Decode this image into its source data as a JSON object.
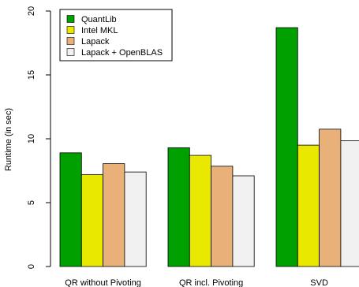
{
  "chart_data": {
    "type": "bar",
    "title": "",
    "xlabel": "",
    "ylabel": "Runtime (in sec)",
    "ylim": [
      0,
      20
    ],
    "yticks": [
      0,
      5,
      10,
      15,
      20
    ],
    "grid": false,
    "legend_position": "top-left",
    "categories": [
      "QR without Pivoting",
      "QR incl. Pivoting",
      "SVD"
    ],
    "series": [
      {
        "name": "QuantLib",
        "color": "#00a000",
        "values": [
          8.9,
          9.3,
          18.7
        ]
      },
      {
        "name": "Intel MKL",
        "color": "#e8e800",
        "values": [
          7.2,
          8.7,
          9.5
        ]
      },
      {
        "name": "Lapack",
        "color": "#eab07a",
        "values": [
          8.05,
          7.85,
          10.75
        ]
      },
      {
        "name": "Lapack + OpenBLAS",
        "color": "#f0f0f0",
        "values": [
          7.4,
          7.1,
          9.85
        ]
      }
    ]
  }
}
